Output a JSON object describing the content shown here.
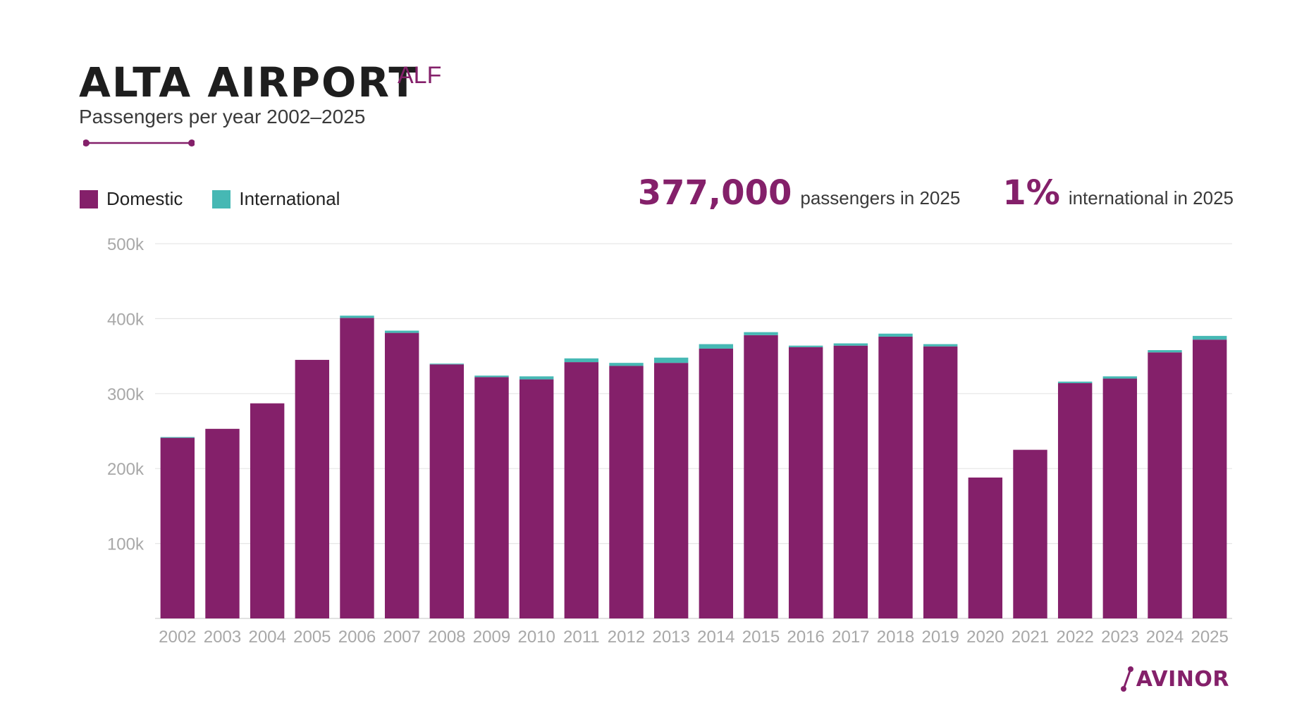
{
  "header": {
    "title": "ALTA AIRPORT",
    "code": "ALF",
    "subtitle": "Passengers per year 2002–2025"
  },
  "legend": {
    "domestic": "Domestic",
    "international": "International"
  },
  "stats": {
    "passengers_value": "377,000",
    "passengers_label": "passengers in 2025",
    "international_value": "1%",
    "international_label": "international in 2025"
  },
  "logo": {
    "text": "AVINOR"
  },
  "colors": {
    "domestic": "#84206a",
    "international": "#46b8b4",
    "grid": "#e6e6e6",
    "tick_text": "#a8a8a8"
  },
  "chart_data": {
    "type": "bar",
    "stacked": true,
    "title": "ALTA AIRPORT",
    "subtitle": "Passengers per year 2002–2025",
    "ylim": [
      0,
      500000
    ],
    "yticks": [
      100000,
      200000,
      300000,
      400000,
      500000
    ],
    "ytick_labels": [
      "100k",
      "200k",
      "300k",
      "400k",
      "500k"
    ],
    "grid": true,
    "legend_position": "top-left",
    "categories": [
      "2002",
      "2003",
      "2004",
      "2005",
      "2006",
      "2007",
      "2008",
      "2009",
      "2010",
      "2011",
      "2012",
      "2013",
      "2014",
      "2015",
      "2016",
      "2017",
      "2018",
      "2019",
      "2020",
      "2021",
      "2022",
      "2023",
      "2024",
      "2025"
    ],
    "series": [
      {
        "name": "Domestic",
        "values": [
          241000,
          253000,
          287000,
          345000,
          401000,
          381000,
          339000,
          322000,
          319000,
          342000,
          337000,
          341000,
          360000,
          378000,
          362000,
          364000,
          376000,
          363000,
          188000,
          225000,
          314000,
          320000,
          355000,
          372000
        ]
      },
      {
        "name": "International",
        "values": [
          1000,
          0,
          0,
          0,
          3000,
          3000,
          1000,
          2000,
          4000,
          5000,
          4000,
          7000,
          6000,
          4000,
          2000,
          3000,
          4000,
          3000,
          0,
          0,
          2000,
          3000,
          3000,
          5000
        ]
      }
    ]
  }
}
